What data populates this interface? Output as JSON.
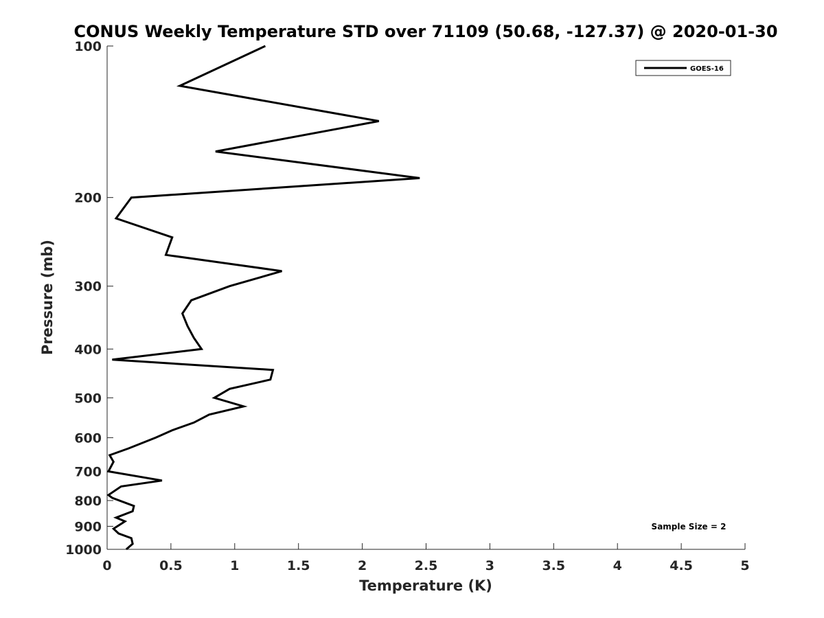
{
  "chart_data": {
    "type": "line",
    "title": "CONUS Weekly Temperature STD over 71109 (50.68, -127.37) @ 2020-01-30",
    "xlabel": "Temperature (K)",
    "ylabel": "Pressure (mb)",
    "xlim": [
      0,
      5
    ],
    "ylim": [
      100,
      1000
    ],
    "y_scale": "log",
    "y_reversed": true,
    "grid": false,
    "legend_position": "top-right",
    "x_ticks": [
      "0",
      "0.5",
      "1",
      "1.5",
      "2",
      "2.5",
      "3",
      "3.5",
      "4",
      "4.5",
      "5"
    ],
    "y_ticks": [
      "100",
      "200",
      "300",
      "400",
      "500",
      "600",
      "700",
      "800",
      "900",
      "1000"
    ],
    "series": [
      {
        "name": "GOES-16",
        "color": "#000000",
        "x": [
          1.24,
          0.57,
          2.13,
          0.85,
          2.45,
          0.19,
          0.07,
          0.51,
          0.46,
          1.37,
          0.96,
          0.66,
          0.59,
          0.63,
          0.68,
          0.74,
          0.04,
          1.3,
          1.28,
          0.96,
          0.84,
          1.07,
          0.8,
          0.68,
          0.51,
          0.38,
          0.17,
          0.02,
          0.05,
          0.01,
          0.43,
          0.11,
          0.01,
          0.04,
          0.21,
          0.2,
          0.07,
          0.14,
          0.05,
          0.09,
          0.19,
          0.2,
          0.15
        ],
        "y": [
          100,
          120,
          141,
          162,
          183,
          200,
          220,
          240,
          260,
          280,
          300,
          320,
          340,
          360,
          380,
          400,
          420,
          440,
          460,
          480,
          500,
          520,
          540,
          560,
          580,
          600,
          630,
          650,
          670,
          700,
          730,
          750,
          780,
          790,
          820,
          840,
          865,
          880,
          910,
          930,
          950,
          975,
          1000
        ]
      }
    ],
    "annotations": [
      "Sample Size = 2"
    ]
  }
}
